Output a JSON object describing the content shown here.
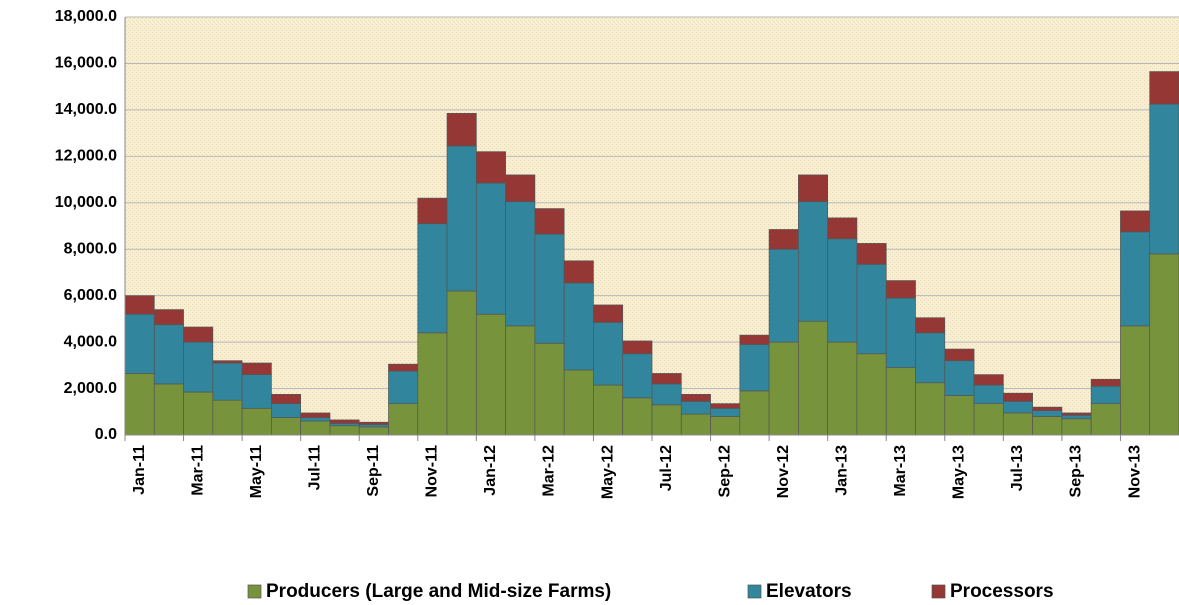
{
  "chart_data": {
    "type": "stacked_bar",
    "categories": [
      "Jan-11",
      null,
      "Mar-11",
      null,
      "May-11",
      null,
      "Jul-11",
      null,
      "Sep-11",
      null,
      "Nov-11",
      null,
      "Jan-12",
      null,
      "Mar-12",
      null,
      "May-12",
      null,
      "Jul-12",
      null,
      "Sep-12",
      null,
      "Nov-12",
      null,
      "Jan-13",
      null,
      "Mar-13",
      null,
      "May-13",
      null,
      "Jul-13",
      null,
      "Sep-13",
      null,
      "Nov-13",
      null
    ],
    "series": [
      {
        "name": "Producers (Large and Mid-size Farms)",
        "color": "#77933c",
        "values": [
          2650,
          2200,
          1850,
          1500,
          1150,
          750,
          600,
          400,
          350,
          1350,
          4400,
          6200,
          5200,
          4700,
          3950,
          2800,
          2150,
          1600,
          1300,
          900,
          800,
          1900,
          4000,
          4900,
          4000,
          3500,
          2900,
          2250,
          1700,
          1350,
          950,
          800,
          700,
          1350,
          4700,
          7800
        ]
      },
      {
        "name": "Elevators",
        "color": "#31859c",
        "values": [
          2550,
          2550,
          2150,
          1600,
          1450,
          600,
          150,
          100,
          100,
          1400,
          4700,
          6250,
          5650,
          5350,
          4700,
          3750,
          2700,
          1900,
          900,
          550,
          350,
          2000,
          4000,
          5150,
          4450,
          3850,
          3000,
          2150,
          1500,
          800,
          500,
          250,
          150,
          750,
          4050,
          6450
        ]
      },
      {
        "name": "Processors",
        "color": "#953735",
        "values": [
          800,
          650,
          650,
          100,
          500,
          400,
          200,
          150,
          100,
          300,
          1100,
          1400,
          1350,
          1150,
          1100,
          950,
          750,
          550,
          450,
          300,
          200,
          400,
          850,
          1150,
          900,
          900,
          750,
          650,
          500,
          450,
          350,
          150,
          100,
          300,
          900,
          1400
        ]
      }
    ],
    "ylim": [
      0,
      18000
    ],
    "yticks": [
      {
        "value": 0,
        "label": "0.0"
      },
      {
        "value": 2000,
        "label": "2,000.0"
      },
      {
        "value": 4000,
        "label": "4,000.0"
      },
      {
        "value": 6000,
        "label": "6,000.0"
      },
      {
        "value": 8000,
        "label": "8,000.0"
      },
      {
        "value": 10000,
        "label": "10,000.0"
      },
      {
        "value": 12000,
        "label": "12,000.0"
      },
      {
        "value": 14000,
        "label": "14,000.0"
      },
      {
        "value": 16000,
        "label": "16,000.0"
      },
      {
        "value": 18000,
        "label": "18,000.0"
      }
    ],
    "grid": true,
    "legend": "bottom"
  }
}
